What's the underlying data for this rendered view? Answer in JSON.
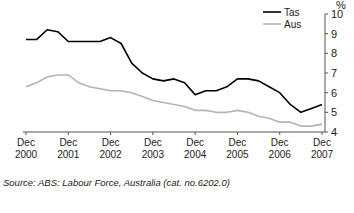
{
  "chart_data": {
    "type": "line",
    "y_label": "%",
    "source": "Source: ABS: Labour Force, Australia (cat. no.6202.0)",
    "categories": [
      "Dec 2000",
      null,
      null,
      null,
      "Dec 2001",
      null,
      null,
      null,
      "Dec 2002",
      null,
      null,
      null,
      "Dec 2003",
      null,
      null,
      null,
      "Dec 2004",
      null,
      null,
      null,
      "Dec 2005",
      null,
      null,
      null,
      "Dec 2006",
      null,
      null,
      null,
      "Dec 2007"
    ],
    "series": [
      {
        "name": "Tas",
        "color": "#000000",
        "values": [
          8.7,
          8.7,
          9.2,
          9.1,
          8.6,
          8.6,
          8.6,
          8.6,
          8.8,
          8.5,
          7.5,
          7.0,
          6.7,
          6.6,
          6.7,
          6.5,
          5.9,
          6.1,
          6.1,
          6.3,
          6.7,
          6.7,
          6.6,
          6.3,
          6.0,
          5.4,
          5.0,
          5.2,
          5.4
        ]
      },
      {
        "name": "Aus",
        "color": "#b4b4b4",
        "values": [
          6.3,
          6.5,
          6.8,
          6.9,
          6.9,
          6.5,
          6.3,
          6.2,
          6.1,
          6.1,
          6.0,
          5.8,
          5.6,
          5.5,
          5.4,
          5.3,
          5.1,
          5.1,
          5.0,
          5.0,
          5.1,
          5.0,
          4.8,
          4.7,
          4.5,
          4.5,
          4.3,
          4.3,
          4.4
        ]
      }
    ],
    "ylim": [
      4,
      10
    ],
    "yticks": [
      4,
      5,
      6,
      7,
      8,
      9,
      10
    ],
    "grid": false,
    "legend": "top-right"
  }
}
